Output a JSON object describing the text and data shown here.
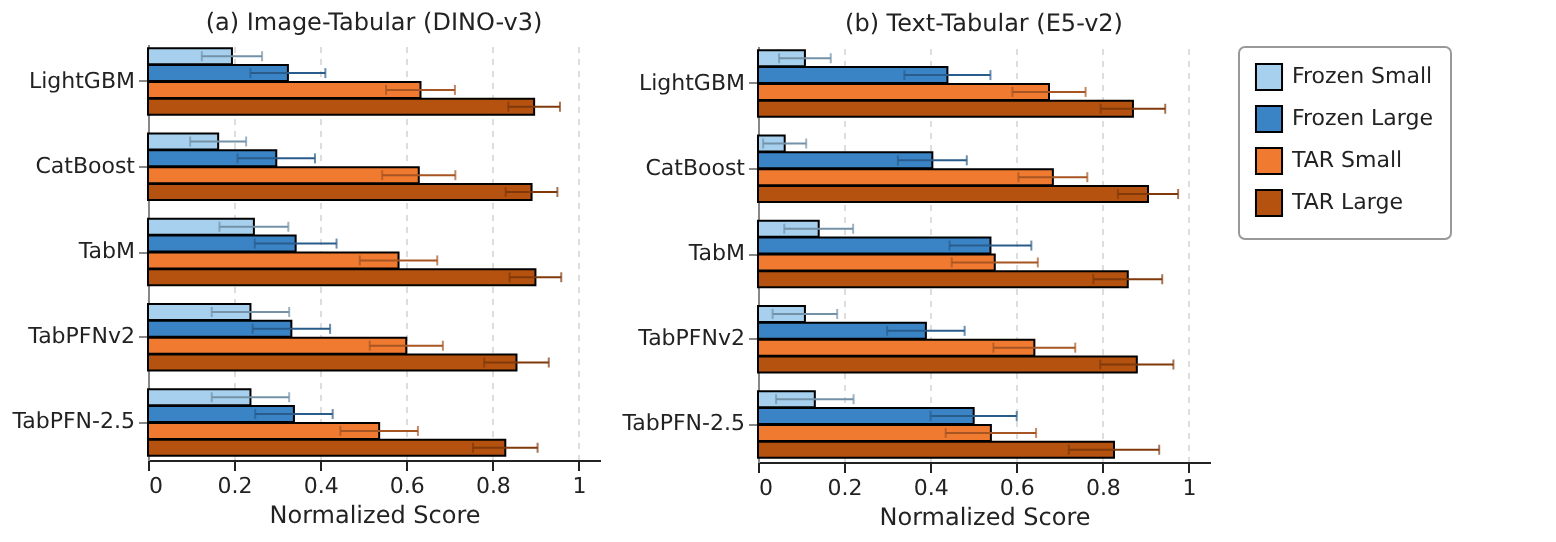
{
  "chart_data": [
    {
      "type": "bar",
      "orientation": "horizontal",
      "title": "(a) Image-Tabular (DINO-v3)",
      "xlabel": "Normalized Score",
      "categories": [
        "LightGBM",
        "CatBoost",
        "TabM",
        "TabPFNv2",
        "TabPFN-2.5"
      ],
      "xlim": [
        0,
        1.05
      ],
      "xticks": [
        0,
        0.2,
        0.4,
        0.6,
        0.8,
        1
      ],
      "grid": "x",
      "legend": false,
      "series": [
        {
          "color": "#a6d0ee",
          "values": [
            0.195,
            0.163,
            0.246,
            0.238,
            0.238
          ],
          "errors": [
            0.07,
            0.065,
            0.08,
            0.09,
            0.09
          ]
        },
        {
          "color": "#3a84c6",
          "values": [
            0.325,
            0.298,
            0.343,
            0.333,
            0.339
          ],
          "errors": [
            0.087,
            0.09,
            0.095,
            0.09,
            0.09
          ]
        },
        {
          "color": "#ef7a30",
          "values": [
            0.633,
            0.629,
            0.582,
            0.6,
            0.537
          ],
          "errors": [
            0.08,
            0.085,
            0.09,
            0.085,
            0.09
          ]
        },
        {
          "color": "#b5520f",
          "values": [
            0.897,
            0.891,
            0.9,
            0.856,
            0.83
          ],
          "errors": [
            0.06,
            0.06,
            0.06,
            0.075,
            0.075
          ]
        }
      ]
    },
    {
      "type": "bar",
      "orientation": "horizontal",
      "title": "(b) Text-Tabular (E5-v2)",
      "xlabel": "Normalized Score",
      "categories": [
        "LightGBM",
        "CatBoost",
        "TabM",
        "TabPFNv2",
        "TabPFN-2.5"
      ],
      "xlim": [
        0,
        1.05
      ],
      "xticks": [
        0,
        0.2,
        0.4,
        0.6,
        0.8,
        1
      ],
      "grid": "x",
      "legend": "right",
      "series": [
        {
          "name": "Frozen Small",
          "color": "#a6d0ee",
          "values": [
            0.109,
            0.062,
            0.141,
            0.109,
            0.132
          ],
          "errors": [
            0.06,
            0.05,
            0.08,
            0.075,
            0.09
          ]
        },
        {
          "name": "Frozen Large",
          "color": "#3a84c6",
          "values": [
            0.44,
            0.405,
            0.54,
            0.39,
            0.501
          ],
          "errors": [
            0.1,
            0.08,
            0.095,
            0.09,
            0.1
          ]
        },
        {
          "name": "TAR Small",
          "color": "#ef7a30",
          "values": [
            0.676,
            0.685,
            0.55,
            0.642,
            0.541
          ],
          "errors": [
            0.085,
            0.08,
            0.1,
            0.095,
            0.105
          ]
        },
        {
          "name": "TAR Large",
          "color": "#b5520f",
          "values": [
            0.871,
            0.906,
            0.859,
            0.88,
            0.827
          ],
          "errors": [
            0.075,
            0.07,
            0.08,
            0.085,
            0.105
          ]
        }
      ]
    }
  ]
}
